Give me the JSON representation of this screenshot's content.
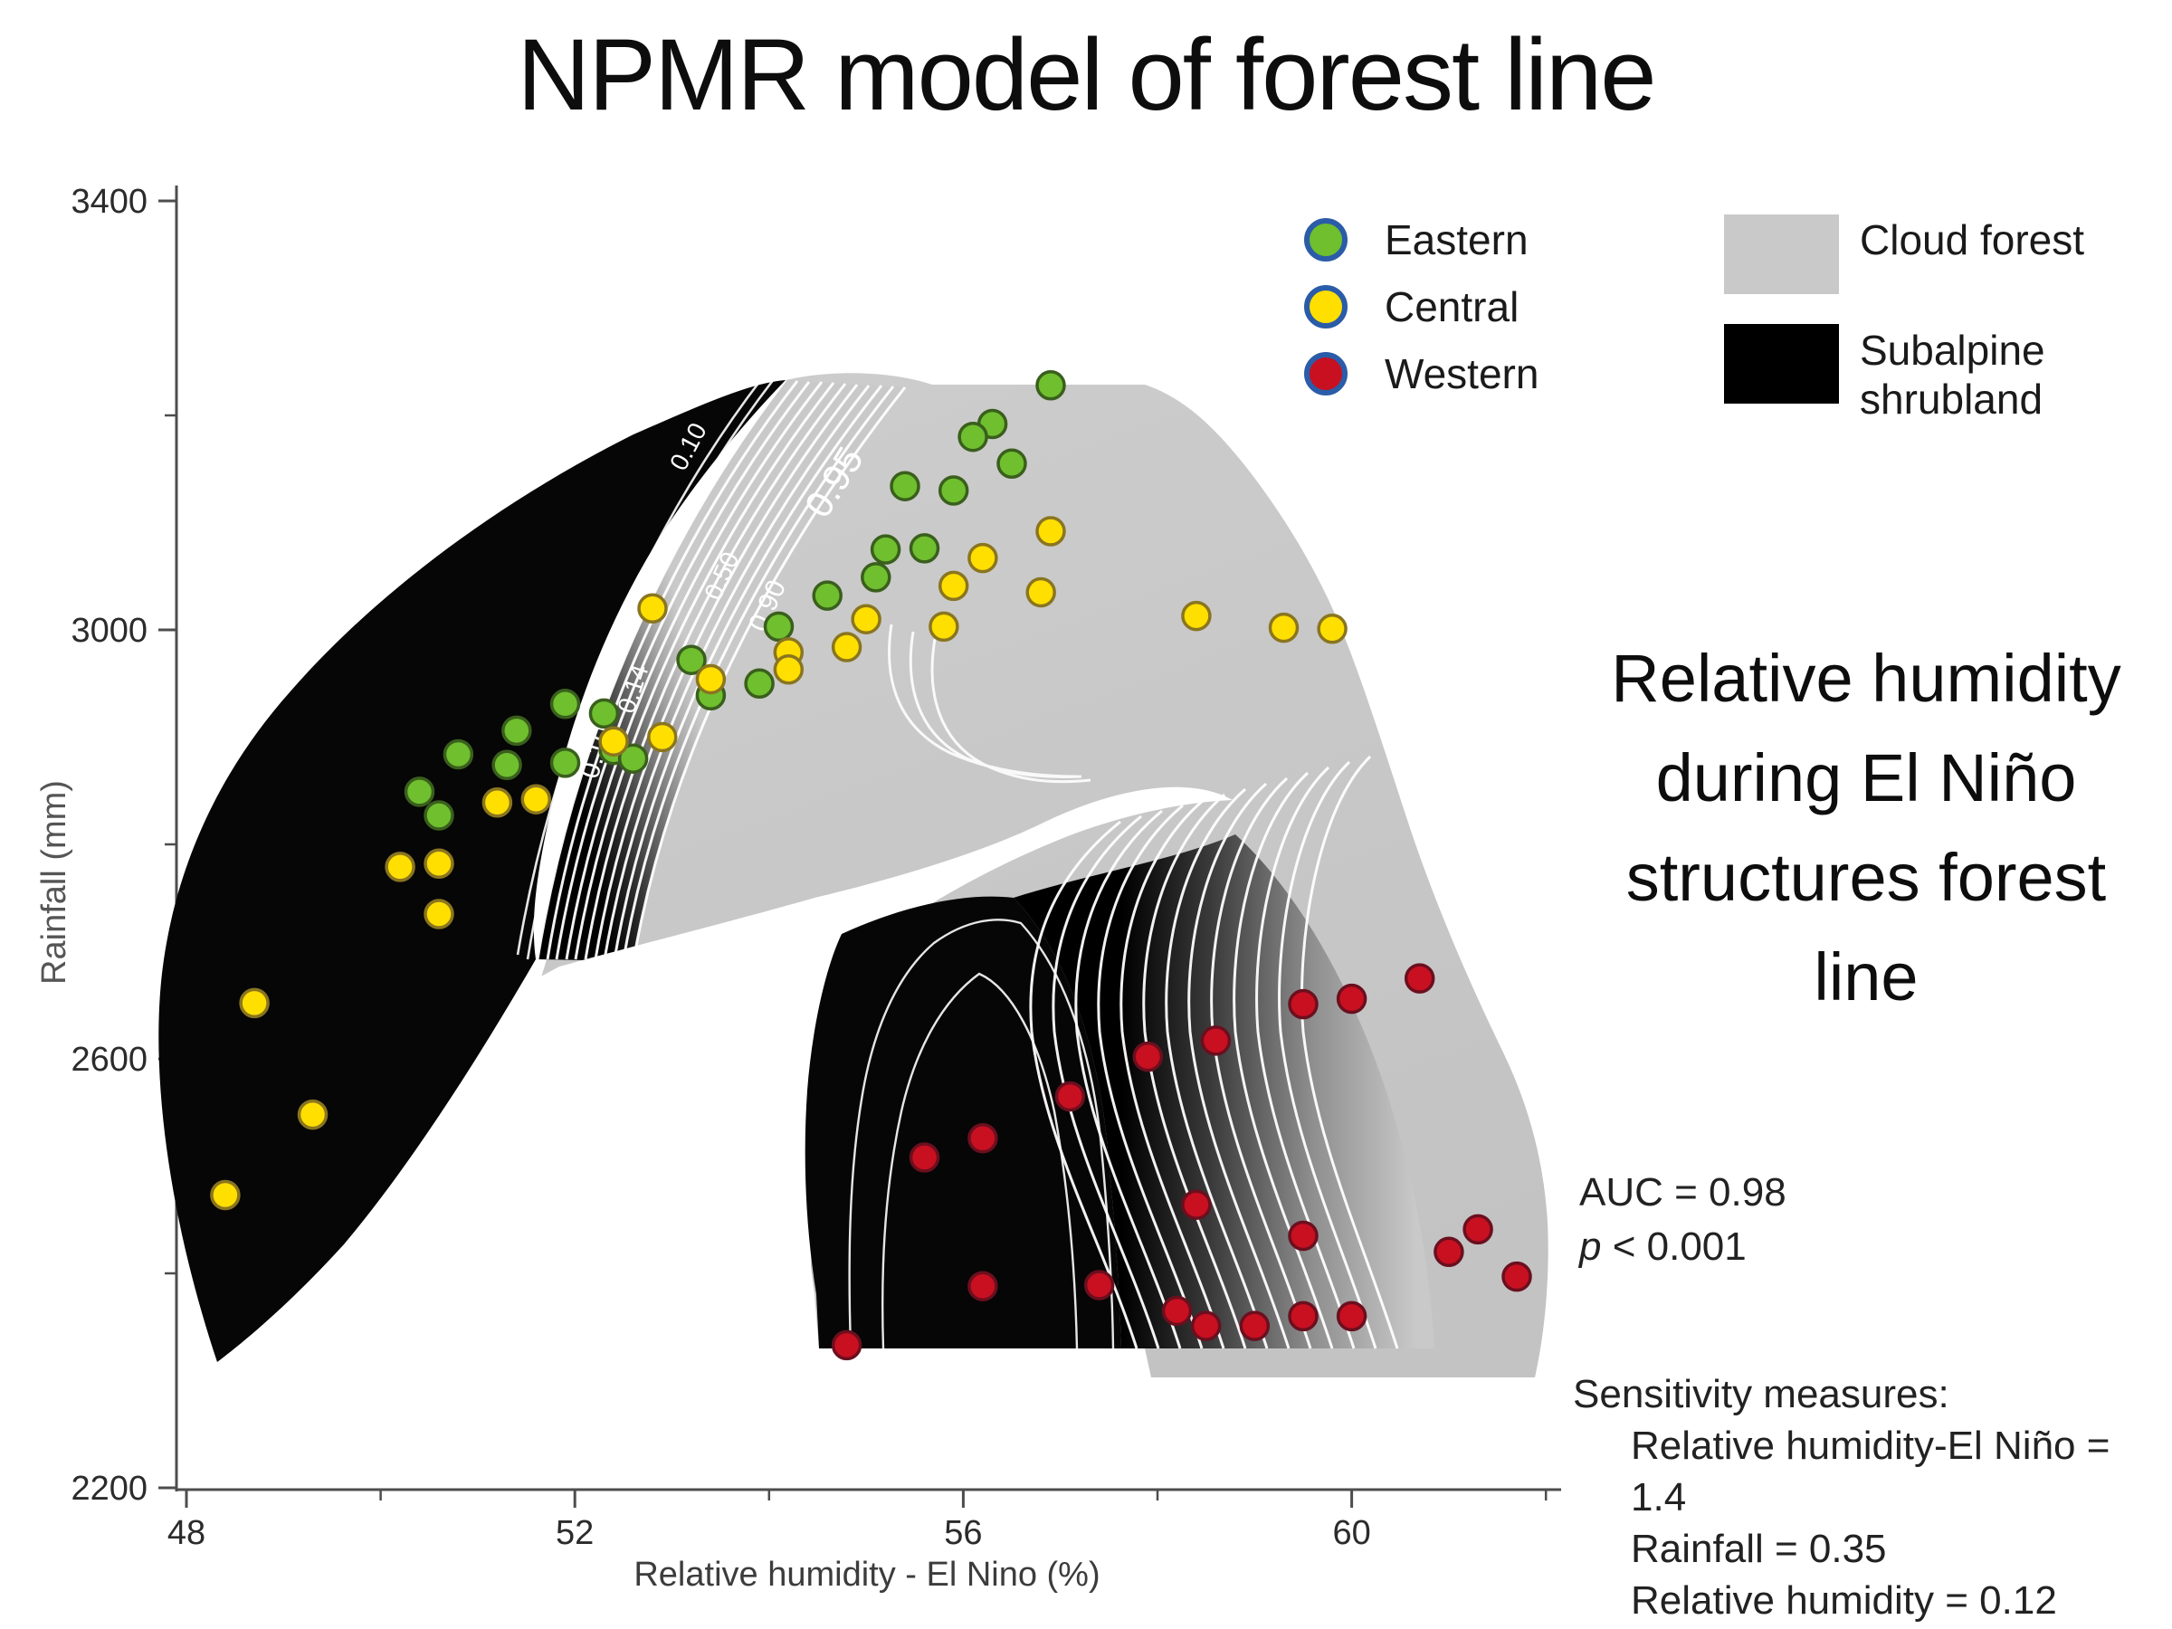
{
  "title": "NPMR model of forest line",
  "annotation": {
    "lines": [
      "Relative humidity",
      "during El Niño",
      "structures forest",
      "line"
    ],
    "auc": "AUC = 0.98",
    "p_label": "p",
    "p_rest": " < 0.001"
  },
  "sensitivity": {
    "heading": "Sensitivity measures:",
    "items": [
      "Relative humidity-El Niño = 1.4",
      "Rainfall = 0.35",
      "Relative humidity = 0.12"
    ]
  },
  "region_legend": {
    "cloud": {
      "label": "Cloud forest",
      "color": "#c9c9c9"
    },
    "subalpine": {
      "line1": "Subalpine",
      "line2": "shrubland",
      "color": "#000000"
    }
  },
  "site_legend_ring_color": "#2b5ca8",
  "chart_data": {
    "type": "contour_scatter",
    "title": "NPMR model of forest line",
    "xlabel": "Relative humidity - El Nino (%)",
    "ylabel": "Rainfall (mm)",
    "x_range": [
      48,
      62.2
    ],
    "y_range": [
      2200,
      3400
    ],
    "x_major_ticks": [
      48,
      52,
      56,
      60
    ],
    "x_minor_ticks": [
      50,
      54,
      58,
      62
    ],
    "y_major_ticks": [
      3400,
      3000,
      2600,
      2200
    ],
    "y_minor_ticks": [
      3200,
      2800,
      2400
    ],
    "grid": false,
    "legend_position": "top-right",
    "regions": [
      {
        "name": "Cloud forest",
        "color": "#c9c9c9"
      },
      {
        "name": "Subalpine shrubland",
        "color": "#000000"
      }
    ],
    "contour_labels": {
      "outer": "0.95",
      "high": "0.90",
      "mid": "0.50",
      "low14": "0.14",
      "low10a": "0.10",
      "low10b": "0.10"
    },
    "series": [
      {
        "name": "Eastern",
        "color": "#6fbf2e",
        "edge": "#3a5f1d",
        "points": [
          [
            56.9,
            3228
          ],
          [
            56.3,
            3192
          ],
          [
            56.1,
            3180
          ],
          [
            56.5,
            3155
          ],
          [
            55.4,
            3134
          ],
          [
            55.9,
            3130
          ],
          [
            55.2,
            3075
          ],
          [
            55.6,
            3076
          ],
          [
            55.1,
            3049
          ],
          [
            54.6,
            3032
          ],
          [
            54.1,
            3003
          ],
          [
            53.9,
            2950
          ],
          [
            53.4,
            2939
          ],
          [
            53.2,
            2972
          ],
          [
            52.4,
            2888
          ],
          [
            51.9,
            2931
          ],
          [
            52.3,
            2922
          ],
          [
            51.9,
            2876
          ],
          [
            51.4,
            2906
          ],
          [
            50.8,
            2884
          ],
          [
            51.3,
            2874
          ],
          [
            50.4,
            2849
          ],
          [
            50.6,
            2827
          ],
          [
            52.6,
            2880
          ]
        ]
      },
      {
        "name": "Central",
        "color": "#ffdf00",
        "edge": "#8a7520",
        "points": [
          [
            56.9,
            3092
          ],
          [
            56.2,
            3067
          ],
          [
            55.9,
            3041
          ],
          [
            56.8,
            3035
          ],
          [
            55.0,
            3010
          ],
          [
            55.8,
            3003
          ],
          [
            54.8,
            2984
          ],
          [
            54.2,
            2979
          ],
          [
            54.2,
            2963
          ],
          [
            58.4,
            3013
          ],
          [
            59.3,
            3002
          ],
          [
            59.8,
            3001
          ],
          [
            52.8,
            3020
          ],
          [
            53.4,
            2954
          ],
          [
            52.4,
            2896
          ],
          [
            52.9,
            2900
          ],
          [
            51.6,
            2842
          ],
          [
            51.2,
            2839
          ],
          [
            50.2,
            2779
          ],
          [
            50.6,
            2782
          ],
          [
            50.6,
            2735
          ],
          [
            48.7,
            2652
          ],
          [
            49.3,
            2548
          ],
          [
            48.4,
            2473
          ]
        ]
      },
      {
        "name": "Western",
        "color": "#c81021",
        "edge": "#6b0f1e",
        "points": [
          [
            60.7,
            2675
          ],
          [
            60.0,
            2656
          ],
          [
            59.5,
            2651
          ],
          [
            58.6,
            2617
          ],
          [
            57.9,
            2602
          ],
          [
            57.1,
            2565
          ],
          [
            56.2,
            2526
          ],
          [
            55.6,
            2508
          ],
          [
            58.4,
            2464
          ],
          [
            59.5,
            2435
          ],
          [
            57.4,
            2389
          ],
          [
            56.2,
            2388
          ],
          [
            54.8,
            2333
          ],
          [
            58.2,
            2365
          ],
          [
            58.5,
            2351
          ],
          [
            59.0,
            2351
          ],
          [
            59.5,
            2360
          ],
          [
            60.0,
            2360
          ],
          [
            61.0,
            2420
          ],
          [
            61.3,
            2441
          ],
          [
            61.7,
            2397
          ]
        ]
      }
    ]
  }
}
